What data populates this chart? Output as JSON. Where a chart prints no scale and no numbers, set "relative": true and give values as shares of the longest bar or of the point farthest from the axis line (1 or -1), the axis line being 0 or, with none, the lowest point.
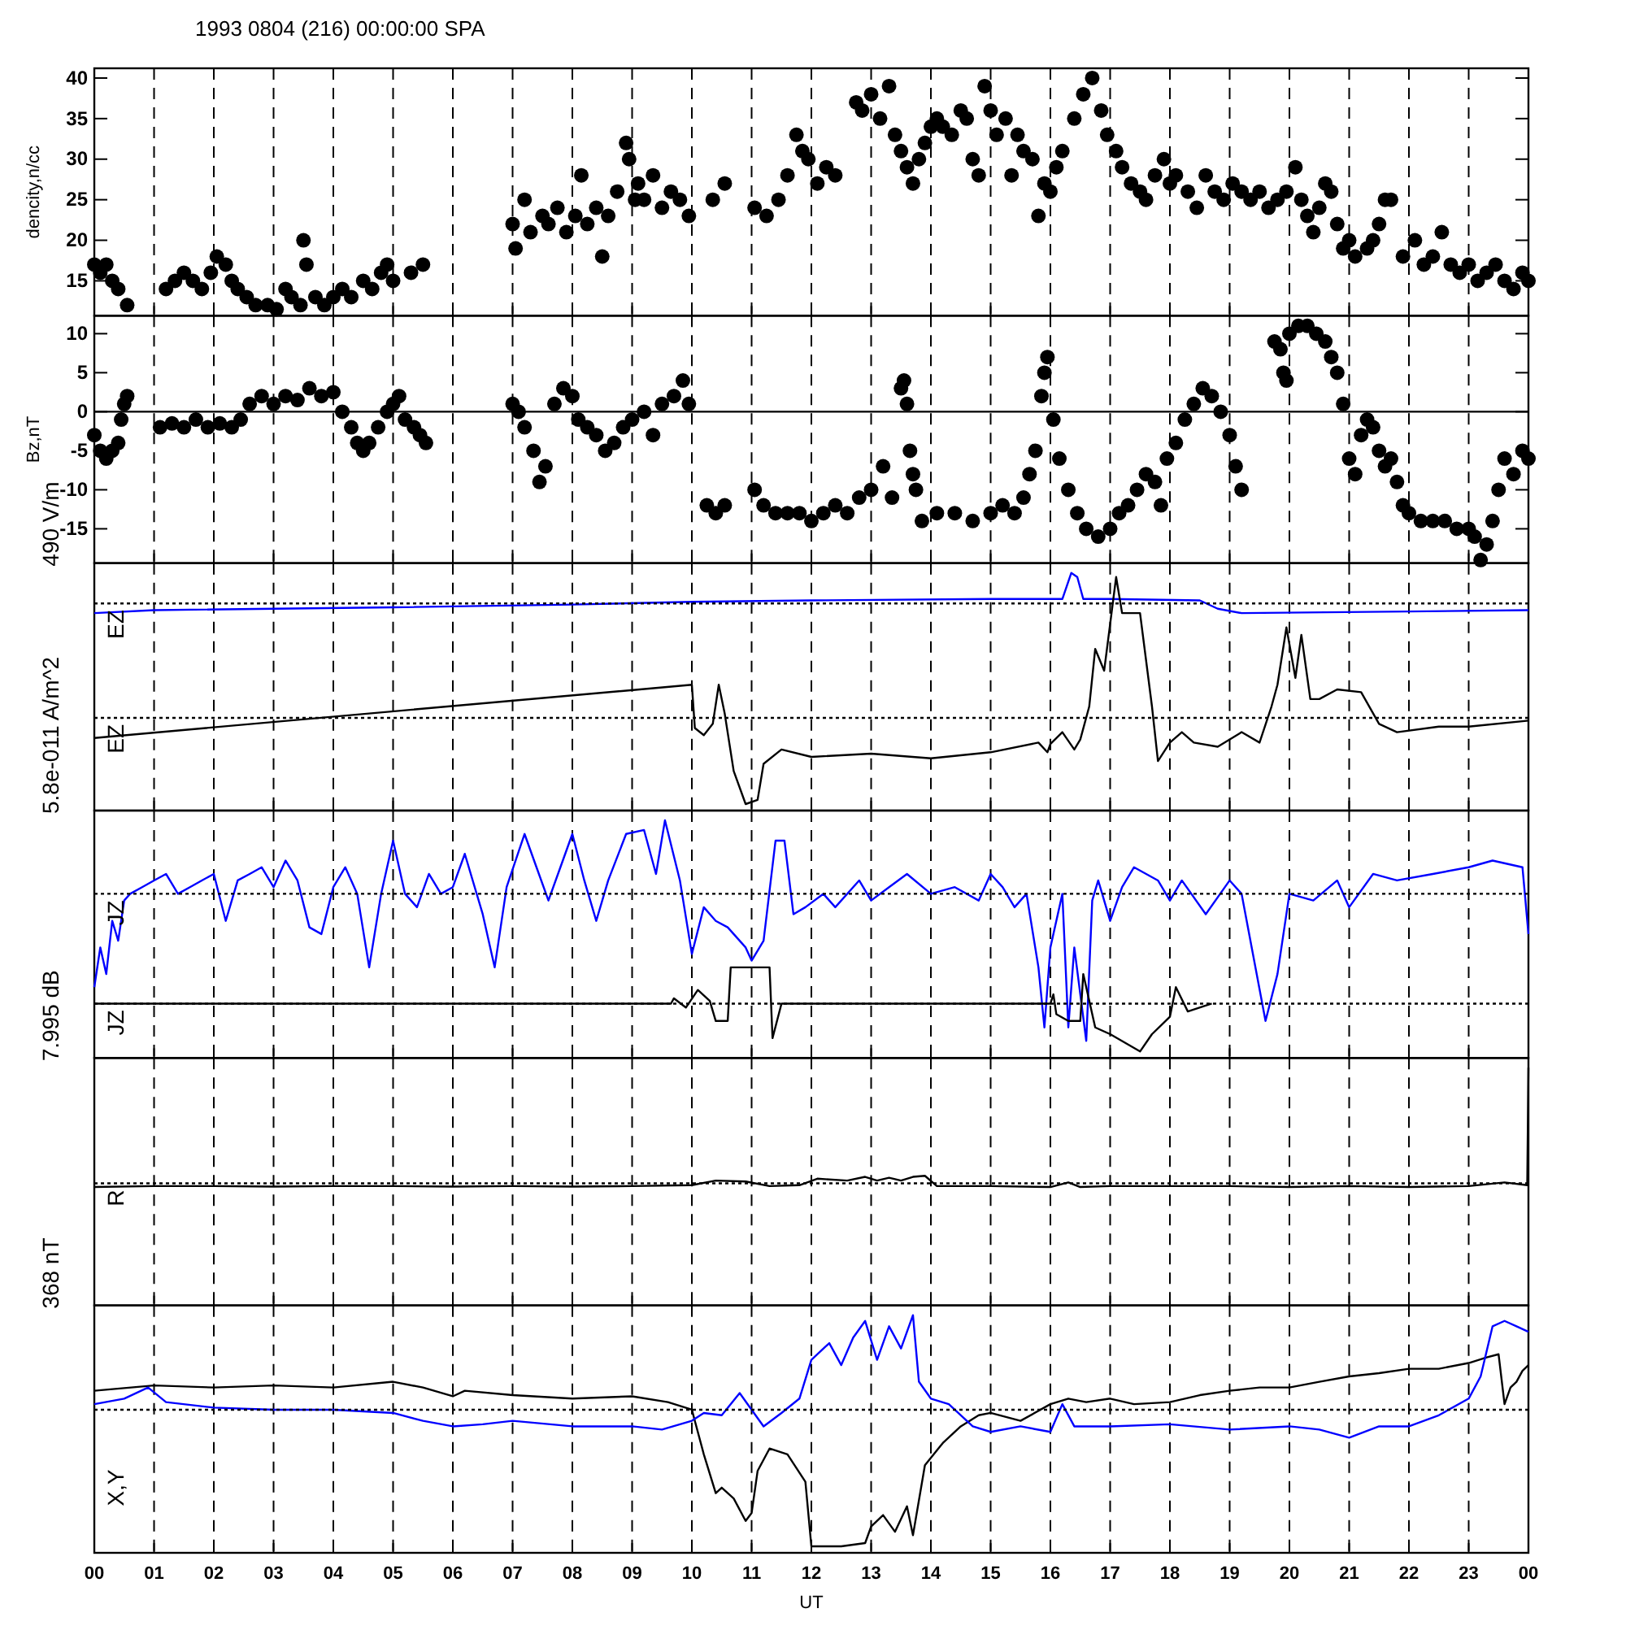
{
  "chart_data": [
    {
      "type": "scatter",
      "title": "1993 0804 (216) 00:00:00 SPA",
      "ylabel": "dencity,n/cc",
      "xlim": [
        0,
        24
      ],
      "ylim": [
        10.7,
        41.2
      ],
      "yticks": [
        15,
        20,
        25,
        30,
        35,
        40
      ],
      "grid": "x",
      "marker": "circle",
      "tick_labels": "y",
      "xticks": [
        0,
        1,
        2,
        3,
        4,
        5,
        6,
        7,
        8,
        9,
        10,
        11,
        12,
        13,
        14,
        15,
        16,
        17,
        18,
        19,
        20,
        21,
        22,
        23,
        24
      ],
      "series": [
        {
          "color": "#000000",
          "x": [
            0,
            0.1,
            0.2,
            0.3,
            0.4,
            0.55,
            1.2,
            1.35,
            1.5,
            1.65,
            1.8,
            1.95,
            2.05,
            2.2,
            2.3,
            2.4,
            2.55,
            2.7,
            2.9,
            3.05,
            3.2,
            3.3,
            3.45,
            3.5,
            3.55,
            3.7,
            3.85,
            4.0,
            4.15,
            4.3,
            4.5,
            4.65,
            4.8,
            4.9,
            5.0,
            5.3,
            5.5,
            7.0,
            7.05,
            7.2,
            7.3,
            7.5,
            7.6,
            7.75,
            7.9,
            8.05,
            8.15,
            8.25,
            8.4,
            8.5,
            8.6,
            8.75,
            8.9,
            8.95,
            9.05,
            9.1,
            9.2,
            9.35,
            9.5,
            9.65,
            9.8,
            9.95,
            10.35,
            10.55,
            11.05,
            11.25,
            11.45,
            11.6,
            11.75,
            11.85,
            11.95,
            12.1,
            12.25,
            12.4,
            12.75,
            12.85,
            13.0,
            13.15,
            13.3,
            13.4,
            13.5,
            13.6,
            13.7,
            13.8,
            13.9,
            14.0,
            14.1,
            14.2,
            14.35,
            14.5,
            14.6,
            14.7,
            14.8,
            14.9,
            15.0,
            15.1,
            15.25,
            15.35,
            15.45,
            15.55,
            15.7,
            15.8,
            15.9,
            16.0,
            16.1,
            16.2,
            16.4,
            16.55,
            16.7,
            16.85,
            16.95,
            17.1,
            17.2,
            17.35,
            17.5,
            17.6,
            17.75,
            17.9,
            18.0,
            18.1,
            18.3,
            18.45,
            18.6,
            18.75,
            18.9,
            19.05,
            19.2,
            19.35,
            19.5,
            19.65,
            19.8,
            19.95,
            20.1,
            20.2,
            20.3,
            20.4,
            20.5,
            20.6,
            20.7,
            20.8,
            20.9,
            21.0,
            21.1,
            21.3,
            21.4,
            21.5,
            21.6,
            21.7,
            21.9,
            22.1,
            22.25,
            22.4,
            22.55,
            22.7,
            22.85,
            23.0,
            23.15,
            23.3,
            23.45,
            23.6,
            23.75,
            23.9,
            24.0
          ],
          "values": [
            17,
            16,
            17,
            15,
            14,
            12,
            14,
            15,
            16,
            15,
            14,
            16,
            18,
            17,
            15,
            14,
            13,
            12,
            12,
            11.5,
            14,
            13,
            12,
            20,
            17,
            13,
            12,
            13,
            14,
            13,
            15,
            14,
            16,
            17,
            15,
            16,
            17,
            22,
            19,
            25,
            21,
            23,
            22,
            24,
            21,
            23,
            28,
            22,
            24,
            18,
            23,
            26,
            32,
            30,
            25,
            27,
            25,
            28,
            24,
            26,
            25,
            23,
            25,
            27,
            24,
            23,
            25,
            28,
            33,
            31,
            30,
            27,
            29,
            28,
            37,
            36,
            38,
            35,
            39,
            33,
            31,
            29,
            27,
            30,
            32,
            34,
            35,
            34,
            33,
            36,
            35,
            30,
            28,
            39,
            36,
            33,
            35,
            28,
            33,
            31,
            30,
            23,
            27,
            26,
            29,
            31,
            35,
            38,
            40,
            36,
            33,
            31,
            29,
            27,
            26,
            25,
            28,
            30,
            27,
            28,
            26,
            24,
            28,
            26,
            25,
            27,
            26,
            25,
            26,
            24,
            25,
            26,
            29,
            25,
            23,
            21,
            24,
            27,
            26,
            22,
            19,
            20,
            18,
            19,
            20,
            22,
            25,
            25,
            18,
            20,
            17,
            18,
            21,
            17,
            16,
            17,
            15,
            16,
            17,
            15,
            14,
            16,
            15
          ]
        }
      ]
    },
    {
      "type": "scatter",
      "ylabel": "Bz,nT",
      "xlim": [
        0,
        24
      ],
      "ylim": [
        -19.4,
        12.3
      ],
      "yticks": [
        -15,
        -10,
        -5,
        0,
        5,
        10
      ],
      "grid": "x",
      "marker": "circle",
      "tick_labels": "y",
      "ref_lines": [
        {
          "axis": "y",
          "value": 0,
          "color": "#000000",
          "line_style": "solid"
        }
      ],
      "xticks": [
        0,
        1,
        2,
        3,
        4,
        5,
        6,
        7,
        8,
        9,
        10,
        11,
        12,
        13,
        14,
        15,
        16,
        17,
        18,
        19,
        20,
        21,
        22,
        23,
        24
      ],
      "series": [
        {
          "color": "#000000",
          "x": [
            0.0,
            0.1,
            0.2,
            0.3,
            0.4,
            0.45,
            0.5,
            0.55,
            1.1,
            1.3,
            1.5,
            1.7,
            1.9,
            2.1,
            2.3,
            2.45,
            2.6,
            2.8,
            3.0,
            3.2,
            3.4,
            3.6,
            3.8,
            4.0,
            4.15,
            4.3,
            4.4,
            4.5,
            4.6,
            4.75,
            4.9,
            5.0,
            5.1,
            5.2,
            5.35,
            5.45,
            5.55,
            7.0,
            7.1,
            7.2,
            7.35,
            7.45,
            7.55,
            7.7,
            7.85,
            8.0,
            8.1,
            8.25,
            8.4,
            8.55,
            8.7,
            8.85,
            9.0,
            9.2,
            9.35,
            9.5,
            9.7,
            9.85,
            9.95,
            10.25,
            10.4,
            10.55,
            11.05,
            11.2,
            11.4,
            11.6,
            11.8,
            12.0,
            12.2,
            12.4,
            12.6,
            12.8,
            13.0,
            13.2,
            13.35,
            13.5,
            13.55,
            13.6,
            13.65,
            13.7,
            13.75,
            13.85,
            14.1,
            14.4,
            14.7,
            15.0,
            15.2,
            15.4,
            15.55,
            15.65,
            15.75,
            15.85,
            15.9,
            15.95,
            16.05,
            16.15,
            16.3,
            16.45,
            16.6,
            16.8,
            17.0,
            17.15,
            17.3,
            17.45,
            17.6,
            17.75,
            17.85,
            17.95,
            18.1,
            18.25,
            18.4,
            18.55,
            18.7,
            18.85,
            19.0,
            19.1,
            19.2,
            19.75,
            19.85,
            19.9,
            19.95,
            20.0,
            20.15,
            20.3,
            20.45,
            20.6,
            20.7,
            20.8,
            20.9,
            21.0,
            21.1,
            21.2,
            21.3,
            21.4,
            21.5,
            21.6,
            21.7,
            21.8,
            21.9,
            22.0,
            22.2,
            22.4,
            22.6,
            22.8,
            23.0,
            23.1,
            23.2,
            23.3,
            23.4,
            23.5,
            23.6,
            23.75,
            23.9,
            24.0
          ],
          "values": [
            -3,
            -5,
            -6,
            -5,
            -4,
            -1,
            1,
            2,
            -2,
            -1.5,
            -2,
            -1,
            -2,
            -1.5,
            -2,
            -1,
            1,
            2,
            1,
            2,
            1.5,
            3,
            2,
            2.5,
            0,
            -2,
            -4,
            -5,
            -4,
            -2,
            0,
            1,
            2,
            -1,
            -2,
            -3,
            -4,
            1,
            0,
            -2,
            -5,
            -9,
            -7,
            1,
            3,
            2,
            -1,
            -2,
            -3,
            -5,
            -4,
            -2,
            -1,
            0,
            -3,
            1,
            2,
            4,
            1,
            -12,
            -13,
            -12,
            -10,
            -12,
            -13,
            -13,
            -13,
            -14,
            -13,
            -12,
            -13,
            -11,
            -10,
            -7,
            -11,
            3,
            4,
            1,
            -5,
            -8,
            -10,
            -14,
            -13,
            -13,
            -14,
            -13,
            -12,
            -13,
            -11,
            -8,
            -5,
            2,
            5,
            7,
            -1,
            -6,
            -10,
            -13,
            -15,
            -16,
            -15,
            -13,
            -12,
            -10,
            -8,
            -9,
            -12,
            -6,
            -4,
            -1,
            1,
            3,
            2,
            0,
            -3,
            -7,
            -10,
            9,
            8,
            5,
            4,
            10,
            11,
            11,
            10,
            9,
            7,
            5,
            1,
            -6,
            -8,
            -3,
            -1,
            -2,
            -5,
            -7,
            -6,
            -9,
            -12,
            -13,
            -14,
            -14,
            -14,
            -15,
            -15,
            -16,
            -19,
            -17,
            -14,
            -10,
            -6,
            -8,
            -5,
            -6
          ]
        }
      ]
    },
    {
      "type": "line",
      "relative": true,
      "xlim": [
        0,
        24
      ],
      "grid": "x",
      "tick_labels": false,
      "annotations": [
        "490 V/m"
      ],
      "ref_lines": [
        {
          "axis": "y",
          "value": 0.868,
          "color": "#000000",
          "line_style": "dotted"
        },
        {
          "axis": "y",
          "value": 0.373,
          "color": "#000000",
          "line_style": "dotted"
        }
      ],
      "xticks": [
        0,
        1,
        2,
        3,
        4,
        5,
        6,
        7,
        8,
        9,
        10,
        11,
        12,
        13,
        14,
        15,
        16,
        17,
        18,
        19,
        20,
        21,
        22,
        23,
        24
      ],
      "series": [
        {
          "name": "EZ",
          "color": "#0000ff",
          "x": [
            0,
            1,
            5,
            8,
            10,
            12,
            15,
            16.2,
            16.35,
            16.45,
            16.55,
            17,
            18.5,
            18.8,
            19.2,
            22,
            24
          ],
          "values": [
            0.826,
            0.839,
            0.851,
            0.863,
            0.875,
            0.881,
            0.887,
            0.887,
            1,
            0.982,
            0.887,
            0.887,
            0.881,
            0.845,
            0.826,
            0.833,
            0.839
          ]
        },
        {
          "name": "EZ",
          "color": "#000000",
          "x": [
            0,
            10,
            10.05,
            10.2,
            10.35,
            10.45,
            10.55,
            10.7,
            10.9,
            11.1,
            11.2,
            11.5,
            12,
            13,
            14,
            15,
            15.8,
            15.95,
            16,
            16.2,
            16.4,
            16.5,
            16.65,
            16.75,
            16.9,
            17.1,
            17.2,
            17.5,
            17.7,
            17.8,
            18,
            18.2,
            18.4,
            18.8,
            19.2,
            19.5,
            19.7,
            19.8,
            19.95,
            20.1,
            20.2,
            20.35,
            20.5,
            20.8,
            21.2,
            21.5,
            21.8,
            22.5,
            23,
            24
          ],
          "values": [
            0.286,
            0.516,
            0.329,
            0.298,
            0.347,
            0.516,
            0.391,
            0.143,
            0,
            0.018,
            0.174,
            0.236,
            0.204,
            0.218,
            0.198,
            0.224,
            0.266,
            0.224,
            0.26,
            0.311,
            0.236,
            0.279,
            0.422,
            0.671,
            0.577,
            0.982,
            0.826,
            0.826,
            0.422,
            0.186,
            0.266,
            0.311,
            0.266,
            0.248,
            0.311,
            0.266,
            0.422,
            0.516,
            0.764,
            0.546,
            0.732,
            0.454,
            0.454,
            0.496,
            0.484,
            0.347,
            0.311,
            0.335,
            0.335,
            0.361
          ]
        }
      ]
    },
    {
      "type": "line",
      "relative": true,
      "xlim": [
        0,
        24
      ],
      "grid": "x",
      "tick_labels": false,
      "annotations": [
        "5.8e-011 A/m^2"
      ],
      "ref_lines": [
        {
          "axis": "y",
          "value": 0.682,
          "color": "#000000",
          "line_style": "dotted"
        },
        {
          "axis": "y",
          "value": 0.207,
          "color": "#000000",
          "line_style": "dotted"
        }
      ],
      "xticks": [
        0,
        1,
        2,
        3,
        4,
        5,
        6,
        7,
        8,
        9,
        10,
        11,
        12,
        13,
        14,
        15,
        16,
        17,
        18,
        19,
        20,
        21,
        22,
        23,
        24
      ],
      "series": [
        {
          "name": "JZ",
          "color": "#0000ff",
          "x": [
            0,
            0.1,
            0.2,
            0.3,
            0.4,
            0.5,
            0.6,
            0.8,
            1.0,
            1.2,
            1.4,
            1.6,
            1.8,
            2.0,
            2.2,
            2.4,
            2.6,
            2.8,
            3.0,
            3.2,
            3.4,
            3.6,
            3.8,
            4.0,
            4.2,
            4.4,
            4.6,
            4.8,
            5.0,
            5.2,
            5.4,
            5.6,
            5.8,
            6.0,
            6.2,
            6.5,
            6.7,
            6.9,
            7.2,
            7.4,
            7.6,
            7.8,
            8.0,
            8.2,
            8.4,
            8.6,
            8.9,
            9.2,
            9.4,
            9.55,
            9.8,
            10.0,
            10.2,
            10.4,
            10.6,
            10.9,
            11.0,
            11.2,
            11.4,
            11.55,
            11.7,
            11.9,
            12.2,
            12.4,
            12.8,
            13.0,
            13.3,
            13.6,
            14.0,
            14.4,
            14.8,
            15.0,
            15.2,
            15.4,
            15.6,
            15.8,
            15.9,
            16.0,
            16.2,
            16.3,
            16.4,
            16.6,
            16.7,
            16.8,
            17.0,
            17.2,
            17.4,
            17.8,
            18.0,
            18.2,
            18.6,
            19.0,
            19.2,
            19.6,
            19.8,
            20.0,
            20.4,
            20.8,
            21.0,
            21.4,
            21.8,
            22.4,
            23.0,
            23.4,
            23.9,
            24
          ],
          "values": [
            0.278,
            0.45,
            0.335,
            0.565,
            0.479,
            0.653,
            0.682,
            0.711,
            0.74,
            0.768,
            0.682,
            0.711,
            0.74,
            0.768,
            0.565,
            0.74,
            0.768,
            0.797,
            0.711,
            0.826,
            0.74,
            0.537,
            0.508,
            0.711,
            0.797,
            0.682,
            0.364,
            0.682,
            0.912,
            0.682,
            0.624,
            0.768,
            0.682,
            0.711,
            0.855,
            0.594,
            0.364,
            0.711,
            0.941,
            0.797,
            0.653,
            0.797,
            0.941,
            0.74,
            0.565,
            0.74,
            0.941,
            0.958,
            0.768,
            1,
            0.74,
            0.422,
            0.624,
            0.565,
            0.537,
            0.45,
            0.393,
            0.479,
            0.912,
            0.912,
            0.594,
            0.624,
            0.682,
            0.624,
            0.74,
            0.653,
            0.711,
            0.768,
            0.682,
            0.711,
            0.653,
            0.768,
            0.711,
            0.624,
            0.682,
            0.364,
            0.104,
            0.45,
            0.682,
            0.104,
            0.45,
            0.046,
            0.653,
            0.74,
            0.565,
            0.711,
            0.797,
            0.74,
            0.653,
            0.74,
            0.594,
            0.74,
            0.682,
            0.132,
            0.335,
            0.682,
            0.653,
            0.74,
            0.624,
            0.768,
            0.74,
            0.768,
            0.797,
            0.826,
            0.797,
            0.508
          ]
        },
        {
          "name": "JZ",
          "color": "#000000",
          "x": [
            0,
            9.65,
            9.7,
            9.9,
            10.1,
            10.3,
            10.4,
            10.6,
            10.65,
            11.3,
            11.35,
            11.5,
            16.0,
            16.05,
            16.1,
            16.3,
            16.5,
            16.55,
            16.75,
            17.0,
            17.5,
            17.7,
            18.0,
            18.1,
            18.3,
            18.7
          ],
          "values": [
            0.207,
            0.207,
            0.23,
            0.19,
            0.266,
            0.219,
            0.132,
            0.132,
            0.364,
            0.364,
            0.058,
            0.207,
            0.207,
            0.247,
            0.161,
            0.132,
            0.132,
            0.335,
            0.104,
            0.075,
            0,
            0.075,
            0.15,
            0.278,
            0.173,
            0.207
          ]
        }
      ]
    },
    {
      "type": "line",
      "relative": true,
      "xlim": [
        0,
        24
      ],
      "grid": "x",
      "tick_labels": false,
      "annotations": [
        "7.995 dB"
      ],
      "ref_lines": [
        {
          "axis": "y",
          "value": 0,
          "color": "#000000",
          "line_style": "dotted"
        }
      ],
      "xticks": [
        0,
        1,
        2,
        3,
        4,
        5,
        6,
        7,
        8,
        9,
        10,
        11,
        12,
        13,
        14,
        15,
        16,
        17,
        18,
        19,
        20,
        21,
        22,
        23,
        24
      ],
      "series": [
        {
          "name": "R",
          "color": "#000000",
          "x": [
            0,
            1,
            2,
            3,
            4,
            5,
            6,
            7,
            8,
            9,
            10,
            10.4,
            10.9,
            11.3,
            11.8,
            12.1,
            12.6,
            12.9,
            13.1,
            13.3,
            13.5,
            13.7,
            13.9,
            14.1,
            15,
            16,
            16.3,
            16.5,
            17,
            18,
            19,
            20,
            21,
            22,
            23,
            23.6,
            23.98,
            24
          ],
          "values": [
            -0.032,
            -0.024,
            -0.024,
            -0.028,
            -0.024,
            -0.024,
            -0.028,
            -0.024,
            -0.028,
            -0.024,
            -0.016,
            0.024,
            0.016,
            -0.024,
            -0.016,
            0.04,
            0.024,
            0.056,
            0.024,
            0.048,
            0.024,
            0.056,
            0.065,
            -0.024,
            -0.024,
            -0.032,
            0.008,
            -0.032,
            -0.024,
            -0.024,
            -0.024,
            -0.032,
            -0.024,
            -0.032,
            -0.024,
            0.008,
            -0.016,
            1
          ]
        }
      ]
    },
    {
      "type": "line",
      "relative": true,
      "xlabel": "UT",
      "ylabel": "X,Y",
      "xlim": [
        0,
        24
      ],
      "grid": "x",
      "tick_labels": "x",
      "annotations": [
        "368 nT"
      ],
      "ref_lines": [
        {
          "axis": "y",
          "value": 0.591,
          "color": "#000000",
          "line_style": "dotted"
        }
      ],
      "xticks": [
        {
          "value": 0,
          "label": "00"
        },
        {
          "value": 1,
          "label": "01"
        },
        {
          "value": 2,
          "label": "02"
        },
        {
          "value": 3,
          "label": "03"
        },
        {
          "value": 4,
          "label": "04"
        },
        {
          "value": 5,
          "label": "05"
        },
        {
          "value": 6,
          "label": "06"
        },
        {
          "value": 7,
          "label": "07"
        },
        {
          "value": 8,
          "label": "08"
        },
        {
          "value": 9,
          "label": "09"
        },
        {
          "value": 10,
          "label": "10"
        },
        {
          "value": 11,
          "label": "11"
        },
        {
          "value": 12,
          "label": "12"
        },
        {
          "value": 13,
          "label": "13"
        },
        {
          "value": 14,
          "label": "14"
        },
        {
          "value": 15,
          "label": "15"
        },
        {
          "value": 16,
          "label": "16"
        },
        {
          "value": 17,
          "label": "17"
        },
        {
          "value": 18,
          "label": "18"
        },
        {
          "value": 19,
          "label": "19"
        },
        {
          "value": 20,
          "label": "20"
        },
        {
          "value": 21,
          "label": "21"
        },
        {
          "value": 22,
          "label": "22"
        },
        {
          "value": 23,
          "label": "23"
        },
        {
          "value": 24,
          "label": "00"
        }
      ],
      "series": [
        {
          "color": "#000000",
          "x": [
            0,
            1,
            2,
            3,
            4,
            5,
            5.5,
            6,
            6.2,
            7,
            8,
            9,
            9.6,
            10.0,
            10.2,
            10.4,
            10.5,
            10.7,
            10.9,
            11.0,
            11.1,
            11.3,
            11.6,
            11.9,
            12.0,
            12.5,
            12.9,
            13.0,
            13.2,
            13.4,
            13.6,
            13.7,
            13.9,
            14.2,
            14.5,
            14.8,
            15.0,
            15.5,
            16.0,
            16.3,
            16.6,
            17.0,
            17.4,
            18.0,
            18.5,
            19,
            19.5,
            20,
            20.5,
            21,
            21.5,
            22,
            22.5,
            23,
            23.3,
            23.5,
            23.6,
            23.7,
            23.8,
            23.9,
            24
          ],
          "values": [
            0.673,
            0.696,
            0.687,
            0.696,
            0.687,
            0.712,
            0.687,
            0.649,
            0.673,
            0.654,
            0.639,
            0.649,
            0.624,
            0.591,
            0.398,
            0.23,
            0.254,
            0.207,
            0.11,
            0.144,
            0.326,
            0.423,
            0.398,
            0.279,
            0,
            0,
            0.014,
            0.086,
            0.135,
            0.063,
            0.173,
            0.048,
            0.351,
            0.447,
            0.519,
            0.567,
            0.577,
            0.543,
            0.615,
            0.639,
            0.624,
            0.639,
            0.615,
            0.624,
            0.654,
            0.673,
            0.687,
            0.687,
            0.712,
            0.735,
            0.749,
            0.768,
            0.768,
            0.793,
            0.817,
            0.831,
            0.615,
            0.687,
            0.712,
            0.759,
            0.784
          ]
        },
        {
          "color": "#0000ff",
          "x": [
            0,
            0.5,
            0.9,
            1.2,
            2,
            3,
            4,
            5,
            5.5,
            6,
            6.5,
            7,
            8,
            9,
            9.5,
            10.0,
            10.2,
            10.5,
            10.8,
            11.0,
            11.2,
            11.5,
            11.8,
            12.0,
            12.3,
            12.5,
            12.7,
            12.9,
            13.1,
            13.3,
            13.5,
            13.7,
            13.8,
            14.0,
            14.3,
            14.7,
            15.0,
            15.5,
            16.0,
            16.2,
            16.4,
            17,
            18,
            19,
            20,
            20.5,
            21,
            21.5,
            22,
            22.5,
            23,
            23.2,
            23.4,
            23.6,
            23.8,
            24
          ],
          "values": [
            0.615,
            0.639,
            0.687,
            0.624,
            0.6,
            0.591,
            0.591,
            0.577,
            0.543,
            0.519,
            0.528,
            0.543,
            0.519,
            0.519,
            0.505,
            0.543,
            0.577,
            0.567,
            0.663,
            0.591,
            0.519,
            0.577,
            0.639,
            0.807,
            0.879,
            0.784,
            0.903,
            0.975,
            0.807,
            0.952,
            0.856,
            1,
            0.712,
            0.639,
            0.615,
            0.519,
            0.495,
            0.519,
            0.495,
            0.615,
            0.519,
            0.519,
            0.528,
            0.505,
            0.519,
            0.505,
            0.47,
            0.519,
            0.519,
            0.567,
            0.639,
            0.735,
            0.952,
            0.975,
            0.952,
            0.928
          ]
        }
      ]
    }
  ]
}
